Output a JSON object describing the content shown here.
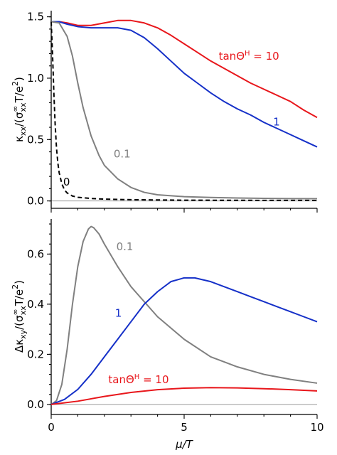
{
  "chart_data": [
    {
      "type": "line",
      "id": "top",
      "xlabel": "",
      "ylabel": "κ_xx/(σ^∞_xx T/e²)",
      "xlim": [
        0,
        10
      ],
      "ylim": [
        -0.06,
        1.55
      ],
      "xticks": [
        0,
        5,
        10
      ],
      "yticks": [
        0.0,
        0.5,
        1.0,
        1.5
      ],
      "ytick_labels": [
        "0.0",
        "0.5",
        "1.0",
        "1.5"
      ],
      "grid": false,
      "series": [
        {
          "name": "10",
          "label_text": "tanΘ",
          "label_sup": "H",
          "label_tail": " = 10",
          "color": "#e8161b",
          "dash": "",
          "x": [
            0,
            0.3,
            0.6,
            1.0,
            1.5,
            2.0,
            2.5,
            3.0,
            3.5,
            4.0,
            4.5,
            5.0,
            5.5,
            6.0,
            6.5,
            7.0,
            7.5,
            8.0,
            8.5,
            9.0,
            9.5,
            10.0
          ],
          "y": [
            1.46,
            1.46,
            1.45,
            1.43,
            1.43,
            1.45,
            1.47,
            1.47,
            1.45,
            1.41,
            1.35,
            1.28,
            1.21,
            1.14,
            1.08,
            1.02,
            0.96,
            0.91,
            0.86,
            0.81,
            0.74,
            0.68
          ]
        },
        {
          "name": "1",
          "label_text": "1",
          "label_sup": "",
          "label_tail": "",
          "color": "#1530c8",
          "dash": "",
          "x": [
            0,
            0.3,
            0.6,
            1.0,
            1.5,
            2.0,
            2.5,
            3.0,
            3.5,
            4.0,
            4.5,
            5.0,
            5.5,
            6.0,
            6.5,
            7.0,
            7.5,
            8.0,
            8.5,
            9.0,
            9.5,
            10.0
          ],
          "y": [
            1.46,
            1.46,
            1.44,
            1.42,
            1.41,
            1.41,
            1.41,
            1.39,
            1.33,
            1.24,
            1.14,
            1.04,
            0.96,
            0.88,
            0.81,
            0.75,
            0.7,
            0.64,
            0.59,
            0.54,
            0.49,
            0.44
          ]
        },
        {
          "name": "0.1",
          "label_text": "0.1",
          "label_sup": "",
          "label_tail": "",
          "color": "#808080",
          "dash": "",
          "x": [
            0,
            0.3,
            0.6,
            0.8,
            1.0,
            1.2,
            1.5,
            1.8,
            2.0,
            2.5,
            3.0,
            3.5,
            4.0,
            5.0,
            6.0,
            7.0,
            8.0,
            9.0,
            10.0
          ],
          "y": [
            1.46,
            1.45,
            1.34,
            1.18,
            0.96,
            0.76,
            0.53,
            0.37,
            0.29,
            0.18,
            0.11,
            0.07,
            0.05,
            0.035,
            0.028,
            0.024,
            0.021,
            0.019,
            0.018
          ]
        },
        {
          "name": "0",
          "label_text": "0",
          "label_sup": "",
          "label_tail": "",
          "color": "#000000",
          "dash": "6,4",
          "x": [
            0,
            0.05,
            0.1,
            0.15,
            0.2,
            0.25,
            0.3,
            0.4,
            0.5,
            0.6,
            0.8,
            1.0,
            1.5,
            2.0,
            3.0,
            4.0,
            5.0,
            7.0,
            10.0
          ],
          "y": [
            1.46,
            1.2,
            0.88,
            0.62,
            0.43,
            0.31,
            0.23,
            0.14,
            0.09,
            0.065,
            0.04,
            0.03,
            0.02,
            0.015,
            0.01,
            0.008,
            0.006,
            0.005,
            0.004
          ]
        }
      ],
      "annotations": [
        {
          "series": "10",
          "x": 6.3,
          "y": 1.15
        },
        {
          "series": "1",
          "x": 8.35,
          "y": 0.615
        },
        {
          "series": "0.1",
          "x": 2.35,
          "y": 0.355
        },
        {
          "series": "0",
          "x": 0.45,
          "y": 0.125
        }
      ]
    },
    {
      "type": "line",
      "id": "bottom",
      "xlabel": "μ/T",
      "ylabel": "Δκ_xy/(σ^∞_xx T/e²)",
      "xlim": [
        0,
        10
      ],
      "ylim": [
        -0.04,
        0.74
      ],
      "xticks": [
        0,
        5,
        10
      ],
      "xtick_labels": [
        "0",
        "5",
        "10"
      ],
      "yticks": [
        0.0,
        0.2,
        0.4,
        0.6
      ],
      "ytick_labels": [
        "0.0",
        "0.2",
        "0.4",
        "0.6"
      ],
      "grid": false,
      "series": [
        {
          "name": "0.1",
          "label_text": "0.1",
          "label_sup": "",
          "label_tail": "",
          "color": "#808080",
          "dash": "",
          "x": [
            0,
            0.2,
            0.4,
            0.6,
            0.8,
            1.0,
            1.2,
            1.4,
            1.5,
            1.6,
            1.8,
            2.0,
            2.5,
            3.0,
            3.5,
            4.0,
            5.0,
            6.0,
            7.0,
            8.0,
            9.0,
            10.0
          ],
          "y": [
            0.0,
            0.015,
            0.08,
            0.22,
            0.4,
            0.55,
            0.65,
            0.7,
            0.71,
            0.705,
            0.68,
            0.64,
            0.55,
            0.47,
            0.41,
            0.35,
            0.26,
            0.19,
            0.15,
            0.12,
            0.1,
            0.085
          ]
        },
        {
          "name": "1",
          "label_text": "1",
          "label_sup": "",
          "label_tail": "",
          "color": "#1530c8",
          "dash": "",
          "x": [
            0,
            0.5,
            1.0,
            1.5,
            2.0,
            2.5,
            3.0,
            3.5,
            4.0,
            4.5,
            5.0,
            5.4,
            6.0,
            6.5,
            7.0,
            7.5,
            8.0,
            8.5,
            9.0,
            9.5,
            10.0
          ],
          "y": [
            0.0,
            0.02,
            0.06,
            0.12,
            0.19,
            0.26,
            0.33,
            0.4,
            0.45,
            0.49,
            0.505,
            0.505,
            0.49,
            0.47,
            0.45,
            0.43,
            0.41,
            0.39,
            0.37,
            0.35,
            0.33
          ]
        },
        {
          "name": "10",
          "label_text": "tanΘ",
          "label_sup": "H",
          "label_tail": " = 10",
          "color": "#e8161b",
          "dash": "",
          "x": [
            0,
            1.0,
            2.0,
            3.0,
            4.0,
            5.0,
            6.0,
            7.0,
            8.0,
            9.0,
            10.0
          ],
          "y": [
            0.0,
            0.013,
            0.032,
            0.048,
            0.059,
            0.065,
            0.067,
            0.066,
            0.063,
            0.059,
            0.054
          ]
        }
      ],
      "annotations": [
        {
          "series": "0.1",
          "x": 2.45,
          "y": 0.615
        },
        {
          "series": "1",
          "x": 2.4,
          "y": 0.35
        },
        {
          "series": "10",
          "x": 2.15,
          "y": 0.085
        }
      ]
    }
  ]
}
